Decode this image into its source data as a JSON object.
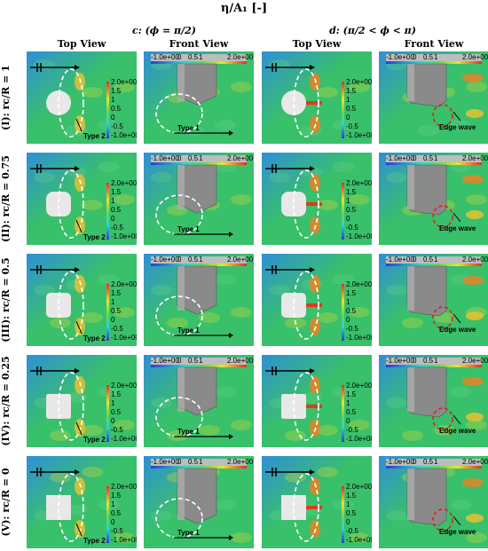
{
  "title": "η/A₁ [-]",
  "columns": [
    {
      "label": "c: (ϕ = π/2)"
    },
    {
      "label": "d: (π/2 < ϕ < π)"
    }
  ],
  "view_labels": [
    "Top View",
    "Front View",
    "Top View",
    "Front View"
  ],
  "rows": [
    {
      "label": "(I): rc/R = 1",
      "shape": "circle"
    },
    {
      "label": "(II): rc/R = 0.75",
      "shape": "rounded-large"
    },
    {
      "label": "(III): rc/R = 0.5",
      "shape": "rounded-mid"
    },
    {
      "label": "(IV): rc/R = 0.25",
      "shape": "rounded-small"
    },
    {
      "label": "(V): rc/R = 0",
      "shape": "square"
    }
  ],
  "annotations": {
    "type2": "Type 2",
    "type1": "Type 1",
    "edge": "Edge wave"
  },
  "colorbar_vertical": [
    "2.0e+00",
    "1.5",
    "1",
    "0.5",
    "0",
    "-0.5",
    "-1.0e+00"
  ],
  "colorbar_horizontal": [
    "-1.0e+00",
    "0",
    "0.5",
    "1",
    "2.0e+00"
  ],
  "colors": {
    "field_blue": "#2f8fd6",
    "field_green": "#39c06a",
    "field_yellow": "#c8d93a",
    "body_gray": "#8a8a8a",
    "dashed_white": "#ffffff",
    "dashed_red": "#e02020"
  }
}
